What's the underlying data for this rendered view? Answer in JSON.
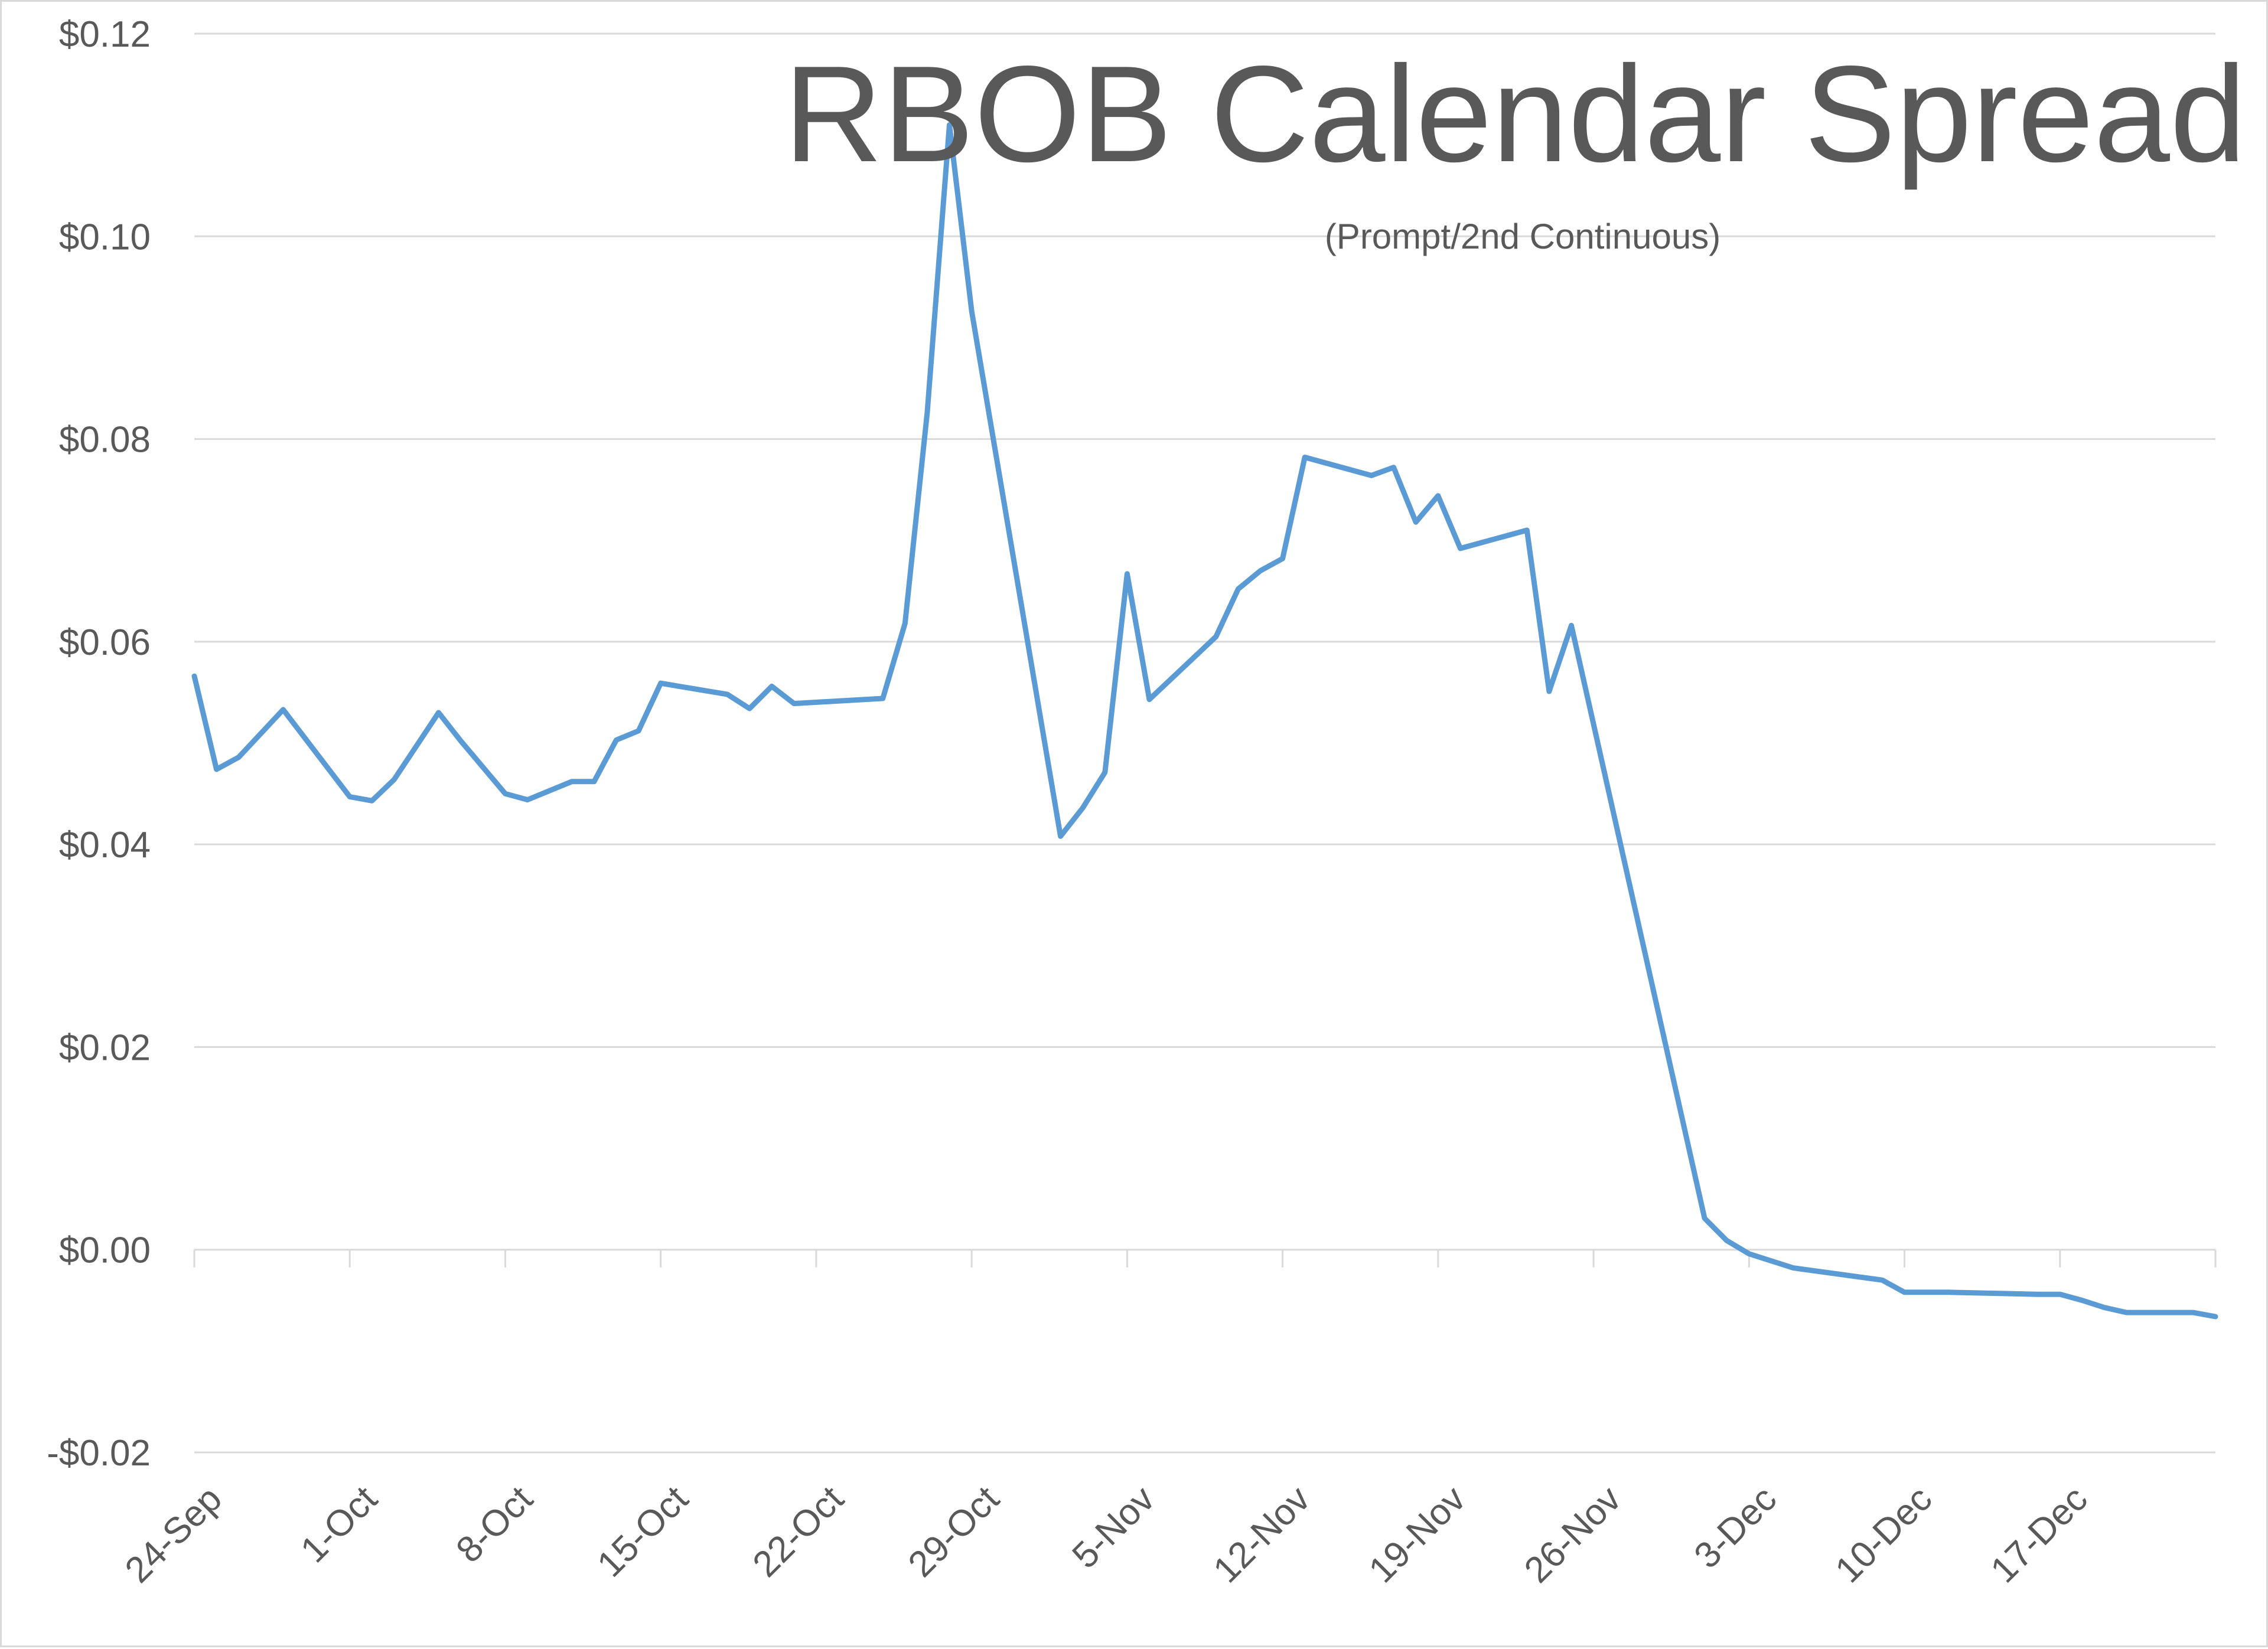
{
  "chart_data": {
    "type": "line",
    "title": "RBOB Calendar Spread",
    "subtitle": "(Prompt/2nd Continuous)",
    "xlabel": "",
    "ylabel": "",
    "ylim": [
      -0.02,
      0.12
    ],
    "y_ticks": [
      0.12,
      0.1,
      0.08,
      0.06,
      0.04,
      0.02,
      0.0,
      -0.02
    ],
    "y_tick_labels": [
      "$0.12",
      "$0.10",
      "$0.08",
      "$0.06",
      "$0.04",
      "$0.02",
      "$0.00",
      "-$0.02"
    ],
    "x_range": [
      "2018-09-24",
      "2018-12-24"
    ],
    "x_ticks": [
      "2018-09-24",
      "2018-10-01",
      "2018-10-08",
      "2018-10-15",
      "2018-10-22",
      "2018-10-29",
      "2018-11-05",
      "2018-11-12",
      "2018-11-19",
      "2018-11-26",
      "2018-12-03",
      "2018-12-10",
      "2018-12-17"
    ],
    "x_tick_labels": [
      "24-Sep",
      "1-Oct",
      "8-Oct",
      "15-Oct",
      "22-Oct",
      "29-Oct",
      "5-Nov",
      "12-Nov",
      "19-Nov",
      "26-Nov",
      "3-Dec",
      "10-Dec",
      "17-Dec"
    ],
    "grid": true,
    "line_color": "#5b9bd5",
    "series": [
      {
        "points": [
          [
            "2018-09-24",
            0.0566
          ],
          [
            "2018-09-25",
            0.0474
          ],
          [
            "2018-09-26",
            0.0486
          ],
          [
            "2018-09-28",
            0.0533
          ],
          [
            "2018-10-01",
            0.0447
          ],
          [
            "2018-10-02",
            0.0443
          ],
          [
            "2018-10-03",
            0.0464
          ],
          [
            "2018-10-05",
            0.053
          ],
          [
            "2018-10-06",
            0.0502
          ],
          [
            "2018-10-08",
            0.045
          ],
          [
            "2018-10-09",
            0.0444
          ],
          [
            "2018-10-11",
            0.0462
          ],
          [
            "2018-10-12",
            0.0462
          ],
          [
            "2018-10-13",
            0.0503
          ],
          [
            "2018-10-14",
            0.0512
          ],
          [
            "2018-10-15",
            0.0559
          ],
          [
            "2018-10-18",
            0.0548
          ],
          [
            "2018-10-19",
            0.0534
          ],
          [
            "2018-10-20",
            0.0556
          ],
          [
            "2018-10-21",
            0.0539
          ],
          [
            "2018-10-25",
            0.0544
          ],
          [
            "2018-10-26",
            0.0618
          ],
          [
            "2018-10-27",
            0.0826
          ],
          [
            "2018-10-28",
            0.111
          ],
          [
            "2018-10-29",
            0.0926
          ],
          [
            "2018-11-02",
            0.0408
          ],
          [
            "2018-11-03",
            0.0436
          ],
          [
            "2018-11-04",
            0.0471
          ],
          [
            "2018-11-05",
            0.0667
          ],
          [
            "2018-11-06",
            0.0543
          ],
          [
            "2018-11-09",
            0.0605
          ],
          [
            "2018-11-10",
            0.0652
          ],
          [
            "2018-11-11",
            0.067
          ],
          [
            "2018-11-12",
            0.0682
          ],
          [
            "2018-11-13",
            0.0782
          ],
          [
            "2018-11-16",
            0.0764
          ],
          [
            "2018-11-17",
            0.0772
          ],
          [
            "2018-11-18",
            0.0718
          ],
          [
            "2018-11-19",
            0.0744
          ],
          [
            "2018-11-20",
            0.0692
          ],
          [
            "2018-11-23",
            0.071
          ],
          [
            "2018-11-24",
            0.0551
          ],
          [
            "2018-11-25",
            0.0616
          ],
          [
            "2018-12-01",
            0.0031
          ],
          [
            "2018-12-02",
            0.0009
          ],
          [
            "2018-12-03",
            -0.0004
          ],
          [
            "2018-12-05",
            -0.0018
          ],
          [
            "2018-12-09",
            -0.003
          ],
          [
            "2018-12-10",
            -0.0042
          ],
          [
            "2018-12-12",
            -0.0042
          ],
          [
            "2018-12-16",
            -0.0044
          ],
          [
            "2018-12-17",
            -0.0044
          ],
          [
            "2018-12-18",
            -0.005
          ],
          [
            "2018-12-19",
            -0.0057
          ],
          [
            "2018-12-20",
            -0.0062
          ],
          [
            "2018-12-23",
            -0.0062
          ],
          [
            "2018-12-24",
            -0.0066
          ]
        ]
      }
    ]
  }
}
